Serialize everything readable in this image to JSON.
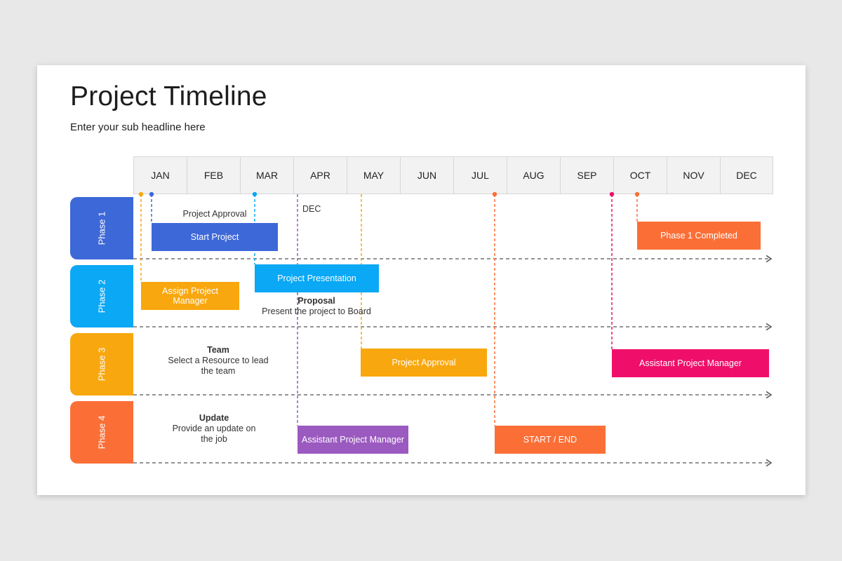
{
  "header": {
    "title": "Project Timeline",
    "subtitle": "Enter your sub headline here"
  },
  "months": [
    "JAN",
    "FEB",
    "MAR",
    "APR",
    "MAY",
    "JUN",
    "JUL",
    "AUG",
    "SEP",
    "OCT",
    "NOV",
    "DEC"
  ],
  "phases": [
    {
      "label": "Phase 1",
      "color": "#3d68d8"
    },
    {
      "label": "Phase 2",
      "color": "#0aa8f5"
    },
    {
      "label": "Phase 3",
      "color": "#f9a70f"
    },
    {
      "label": "Phase 4",
      "color": "#fb6f37"
    }
  ],
  "tasks": [
    {
      "label": "Start Project",
      "color": "#3d68d8"
    },
    {
      "label": "Phase 1 Completed",
      "color": "#fb6f37"
    },
    {
      "label": "Assign Project Manager",
      "color": "#f9a70f"
    },
    {
      "label": "Project Presentation",
      "color": "#0aa8f5"
    },
    {
      "label": "Project Approval",
      "color": "#f9a70f"
    },
    {
      "label": "Assistant Project Manager",
      "color": "#ef0f6b"
    },
    {
      "label": "Assistant Project Manager",
      "color": "#9b5abf"
    },
    {
      "label": "START / END",
      "color": "#fb6f37"
    }
  ],
  "notes": {
    "project_approval": "Project Approval",
    "dec": "DEC",
    "proposal_title": "Proposal",
    "proposal_text": "Present the project to Board",
    "team_title": "Team",
    "team_text": "Select a Resource to lead the team",
    "update_title": "Update",
    "update_text": "Provide an update on the job"
  }
}
